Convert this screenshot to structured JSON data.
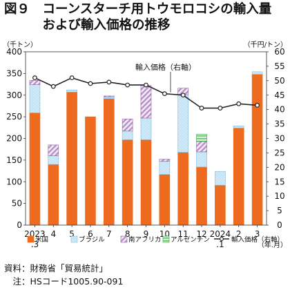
{
  "figure": {
    "title_line1": "図９　コーンスターチ用トウモロコシの輸入量",
    "title_line2": "　　　および輸入価格の推移",
    "source_line": "資料：財務省「貿易統計」",
    "note_line": "　注：HSコード1005.90-091"
  },
  "colors": {
    "us": "#ed6a1f",
    "brazil": "#cfe9f7",
    "south_africa": "#b48cc2",
    "argentina": "#6fbe74",
    "price_line": "#222222"
  },
  "chart_data": {
    "type": "bar",
    "stacked": true,
    "y_unit_left": "（千トン）",
    "y_unit_right": "（千円/トン）",
    "x_unit": "（年.月）",
    "ylim": [
      0,
      400
    ],
    "yticks": [
      0,
      50,
      100,
      150,
      200,
      250,
      300,
      350,
      400
    ],
    "y2lim": [
      0,
      60
    ],
    "y2ticks": [
      0,
      5,
      10,
      15,
      20,
      25,
      30,
      35,
      40,
      45,
      50,
      55,
      60
    ],
    "categories": [
      {
        "top": "2023",
        "bottom": ".3"
      },
      {
        "top": "4",
        "bottom": ""
      },
      {
        "top": "5",
        "bottom": ""
      },
      {
        "top": "6",
        "bottom": ""
      },
      {
        "top": "7",
        "bottom": ""
      },
      {
        "top": "8",
        "bottom": ""
      },
      {
        "top": "9",
        "bottom": ""
      },
      {
        "top": "10",
        "bottom": ""
      },
      {
        "top": "11",
        "bottom": ""
      },
      {
        "top": "12",
        "bottom": ""
      },
      {
        "top": "2024",
        "bottom": ".1"
      },
      {
        "top": "2",
        "bottom": ""
      },
      {
        "top": "3",
        "bottom": ""
      }
    ],
    "series": [
      {
        "name": "米国",
        "key": "us",
        "values": [
          259,
          140,
          307,
          250,
          292,
          197,
          197,
          117,
          168,
          134,
          92,
          224,
          348
        ]
      },
      {
        "name": "ブラジル",
        "key": "brazil",
        "values": [
          65,
          20,
          5,
          0,
          4,
          20,
          50,
          30,
          133,
          35,
          32,
          5,
          6
        ]
      },
      {
        "name": "南アフリカ",
        "key": "south_africa",
        "values": [
          10,
          25,
          0,
          0,
          2,
          28,
          75,
          5,
          15,
          24,
          0,
          0,
          0
        ]
      },
      {
        "name": "アルゼンチン",
        "key": "argentina",
        "values": [
          0,
          0,
          0,
          0,
          0,
          0,
          0,
          0,
          0,
          17,
          0,
          0,
          0
        ]
      }
    ],
    "price_series": {
      "name": "輸入価格（右軸）",
      "values": [
        51,
        48,
        51,
        49,
        49.5,
        48.5,
        48.5,
        45.5,
        45,
        40.5,
        40.5,
        42,
        41.5
      ]
    },
    "annotation": "輸入価格（右軸）",
    "legend_position": "bottom"
  }
}
